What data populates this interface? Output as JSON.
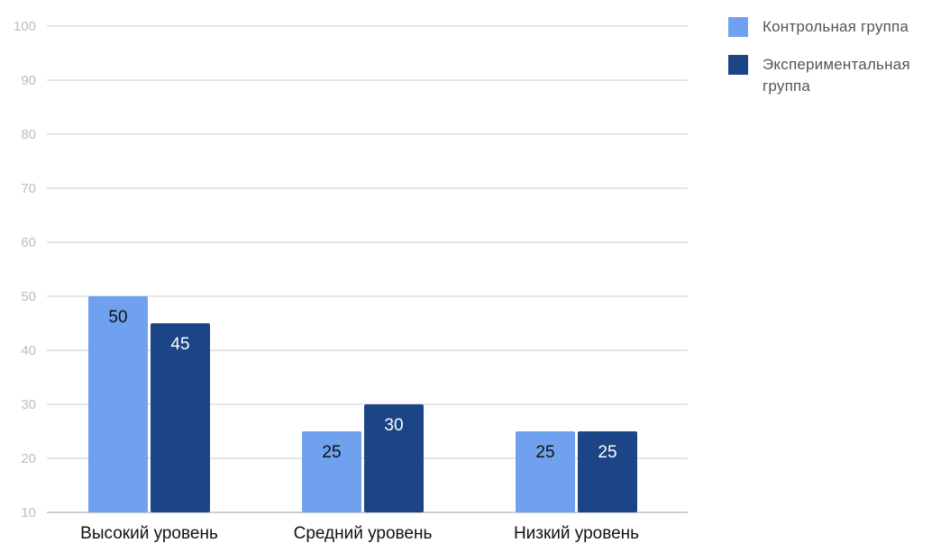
{
  "chart_data": {
    "type": "bar",
    "categories": [
      "Высокий уровень",
      "Средний уровень",
      "Низкий уровень"
    ],
    "series": [
      {
        "name": "Контрольная группа",
        "values": [
          50,
          25,
          25
        ],
        "color": "#6fa1ee"
      },
      {
        "name": "Экспериментальная группа",
        "values": [
          45,
          30,
          25
        ],
        "color": "#1c4587"
      }
    ],
    "title": "",
    "xlabel": "",
    "ylabel": "",
    "ylim": [
      10,
      100
    ],
    "yticks": [
      10,
      20,
      30,
      40,
      50,
      60,
      70,
      80,
      90,
      100
    ],
    "grid": true,
    "legend_position": "top-right",
    "data_label_colors": [
      "#111111",
      "#ffffff"
    ],
    "gridline_color": "#cccccc",
    "tick_label_color": "#bdbdbd"
  }
}
